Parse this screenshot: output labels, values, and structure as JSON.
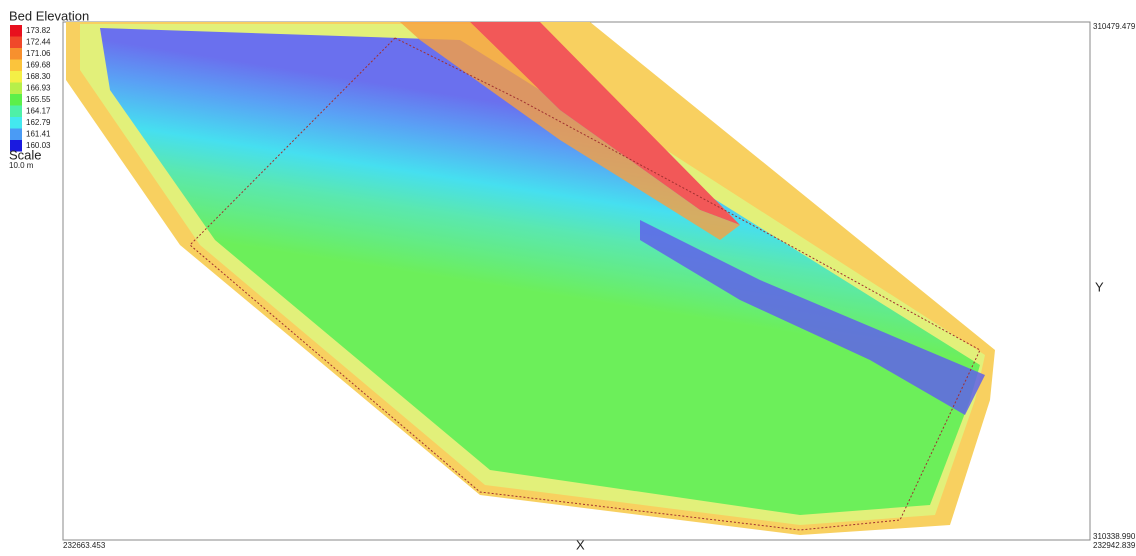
{
  "legend": {
    "title": "Bed Elevation",
    "items": [
      {
        "label": "173.82",
        "color": "#e8101e"
      },
      {
        "label": "172.44",
        "color": "#f0482a"
      },
      {
        "label": "171.06",
        "color": "#f7902e"
      },
      {
        "label": "169.68",
        "color": "#fbc43c"
      },
      {
        "label": "168.30",
        "color": "#f4ef46"
      },
      {
        "label": "166.93",
        "color": "#b7ef4a"
      },
      {
        "label": "165.55",
        "color": "#5cef4a"
      },
      {
        "label": "164.17",
        "color": "#4ef0a8"
      },
      {
        "label": "162.79",
        "color": "#43e8ef"
      },
      {
        "label": "161.41",
        "color": "#4a9bf5"
      },
      {
        "label": "160.03",
        "color": "#1a1ae0"
      }
    ]
  },
  "scale": {
    "label": "Scale",
    "value": "10.0 m"
  },
  "axes": {
    "y_label": "Y",
    "y_max": "310479.479",
    "y_min": "310338.990",
    "x_label": "X",
    "x_min": "232663.453",
    "x_max": "232942.839"
  }
}
